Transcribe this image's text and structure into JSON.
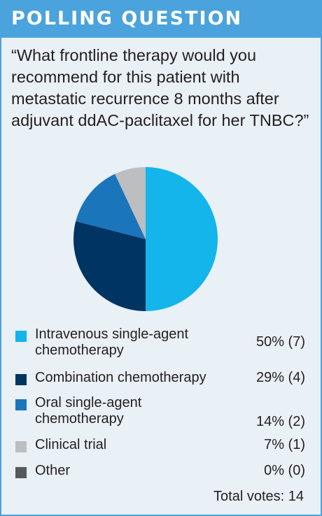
{
  "header": {
    "title": "POLLING QUESTION"
  },
  "question": "“What frontline therapy would you recommend for this patient with metastatic recurrence 8 months after adjuvant ddAC-paclitaxel for her TNBC?”",
  "chart_data": {
    "type": "pie",
    "title": "",
    "series": [
      {
        "name": "Intravenous single-agent\nchemotherapy",
        "value": 50,
        "votes": 7,
        "label": "50% (7)",
        "color": "#13b5ea"
      },
      {
        "name": "Combination chemotherapy",
        "value": 29,
        "votes": 4,
        "label": "29% (4)",
        "color": "#003462"
      },
      {
        "name": "Oral single-agent\nchemotherapy",
        "value": 14,
        "votes": 2,
        "label": "14% (2)",
        "color": "#1a75bb"
      },
      {
        "name": "Clinical trial",
        "value": 7,
        "votes": 1,
        "label": "7% (1)",
        "color": "#bcbec0"
      },
      {
        "name": "Other",
        "value": 0,
        "votes": 0,
        "label": "0% (0)",
        "color": "#58595b"
      }
    ],
    "legend": "bottom",
    "total_label": "Total votes: 14"
  }
}
